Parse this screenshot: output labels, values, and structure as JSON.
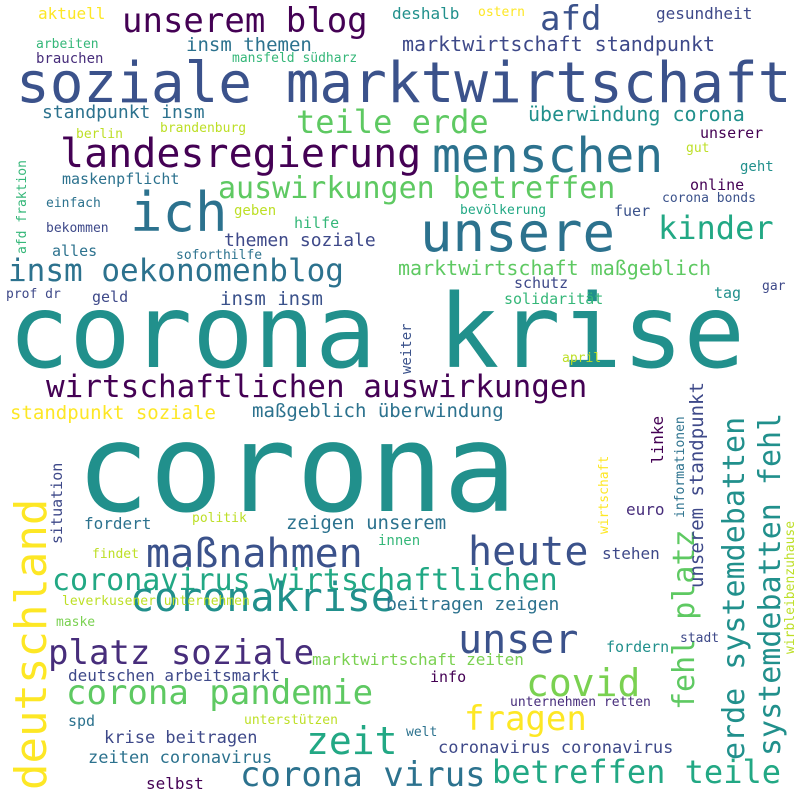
{
  "words": [
    {
      "id": "w-corona",
      "text": "corona",
      "color": "#21908c"
    },
    {
      "id": "w-corona-krise",
      "text": "corona krise",
      "color": "#21908c"
    },
    {
      "id": "w-soziale-marktwirtschaft",
      "text": "soziale marktwirtschaft",
      "color": "#3b528b"
    },
    {
      "id": "w-menschen",
      "text": "menschen",
      "color": "#2c728e"
    },
    {
      "id": "w-unsere",
      "text": "unsere",
      "color": "#2c728e"
    },
    {
      "id": "w-ich",
      "text": "ich",
      "color": "#2c728e"
    },
    {
      "id": "w-landesregierung",
      "text": "landesregierung",
      "color": "#440154"
    },
    {
      "id": "w-unserem-blog",
      "text": "unserem blog",
      "color": "#440154"
    },
    {
      "id": "w-afd",
      "text": "afd",
      "color": "#3b528b"
    },
    {
      "id": "w-teile-erde",
      "text": "teile erde",
      "color": "#5ec962"
    },
    {
      "id": "w-auswirkungen-betreffen",
      "text": "auswirkungen betreffen",
      "color": "#5ec962"
    },
    {
      "id": "w-kinder",
      "text": "kinder",
      "color": "#22a884"
    },
    {
      "id": "w-insm-oekonomenblog",
      "text": "insm oekonomenblog",
      "color": "#2c728e"
    },
    {
      "id": "w-wirtschaftlichen-auswirkungen",
      "text": "wirtschaftlichen auswirkungen",
      "color": "#440154"
    },
    {
      "id": "w-deutschland",
      "text": "deutschland",
      "color": "#fde725"
    },
    {
      "id": "w-massnahmen",
      "text": "maßnahmen",
      "color": "#3b528b"
    },
    {
      "id": "w-heute",
      "text": "heute",
      "color": "#3b528b"
    },
    {
      "id": "w-coronavirus-wirtschaftlichen",
      "text": "coronavirus wirtschaftlichen",
      "color": "#22a884"
    },
    {
      "id": "w-coronakrise",
      "text": "coronakrise",
      "color": "#21908c"
    },
    {
      "id": "w-unser",
      "text": "unser",
      "color": "#3b528b"
    },
    {
      "id": "w-platz-soziale",
      "text": "platz soziale",
      "color": "#472d7b"
    },
    {
      "id": "w-corona-pandemie",
      "text": "corona pandemie",
      "color": "#5ec962"
    },
    {
      "id": "w-covid",
      "text": "covid",
      "color": "#7ad151"
    },
    {
      "id": "w-fragen",
      "text": "fragen",
      "color": "#fde725"
    },
    {
      "id": "w-zeit",
      "text": "zeit",
      "color": "#22a884"
    },
    {
      "id": "w-corona-virus",
      "text": "corona virus",
      "color": "#2c728e"
    },
    {
      "id": "w-betreffen-teile",
      "text": "betreffen teile",
      "color": "#22a884"
    },
    {
      "id": "w-erde-systemdebatten",
      "text": "erde systemdebatten",
      "color": "#21908c"
    },
    {
      "id": "w-systemdebatten-fehl",
      "text": "systemdebatten fehl",
      "color": "#21908c"
    },
    {
      "id": "w-fehl-platz",
      "text": "fehl platz",
      "color": "#5ec962"
    },
    {
      "id": "w-marktwirtschaft-standpunkt",
      "text": "marktwirtschaft standpunkt",
      "color": "#3e4989"
    },
    {
      "id": "w-insm-themen",
      "text": "insm themen",
      "color": "#2c728e"
    },
    {
      "id": "w-deshalb",
      "text": "deshalb",
      "color": "#21908c"
    },
    {
      "id": "w-gesundheit",
      "text": "gesundheit",
      "color": "#3e4989"
    },
    {
      "id": "w-aktuell",
      "text": "aktuell",
      "color": "#fde725"
    },
    {
      "id": "w-ostern",
      "text": "ostern",
      "color": "#fde725"
    },
    {
      "id": "w-arbeiten",
      "text": "arbeiten",
      "color": "#35b779"
    },
    {
      "id": "w-brauchen",
      "text": "brauchen",
      "color": "#472d7b"
    },
    {
      "id": "w-mansfeld-suedharz",
      "text": "mansfeld südharz",
      "color": "#35b779"
    },
    {
      "id": "w-standpunkt-insm",
      "text": "standpunkt insm",
      "color": "#2c728e"
    },
    {
      "id": "w-ueberwindung-corona",
      "text": "überwindung corona",
      "color": "#21908c"
    },
    {
      "id": "w-unserer",
      "text": "unserer",
      "color": "#440154"
    },
    {
      "id": "w-berlin",
      "text": "berlin",
      "color": "#bddf26"
    },
    {
      "id": "w-brandenburg",
      "text": "brandenburg",
      "color": "#bddf26"
    },
    {
      "id": "w-gut",
      "text": "gut",
      "color": "#bddf26"
    },
    {
      "id": "w-geht",
      "text": "geht",
      "color": "#21908c"
    },
    {
      "id": "w-maskenpflicht",
      "text": "maskenpflicht",
      "color": "#2c728e"
    },
    {
      "id": "w-online",
      "text": "online",
      "color": "#440154"
    },
    {
      "id": "w-einfach",
      "text": "einfach",
      "color": "#2c728e"
    },
    {
      "id": "w-geben",
      "text": "geben",
      "color": "#bddf26"
    },
    {
      "id": "w-bevoelkerung",
      "text": "bevölkerung",
      "color": "#22a884"
    },
    {
      "id": "w-fuer",
      "text": "fuer",
      "color": "#3b528b"
    },
    {
      "id": "w-corona-bonds",
      "text": "corona bonds",
      "color": "#3b528b"
    },
    {
      "id": "w-afd-fraktion",
      "text": "afd fraktion",
      "color": "#35b779"
    },
    {
      "id": "w-bekommen",
      "text": "bekommen",
      "color": "#3e4989"
    },
    {
      "id": "w-hilfe",
      "text": "hilfe",
      "color": "#35b779"
    },
    {
      "id": "w-themen-soziale",
      "text": "themen soziale",
      "color": "#3e4989"
    },
    {
      "id": "w-alles",
      "text": "alles",
      "color": "#2c728e"
    },
    {
      "id": "w-soforthilfe",
      "text": "soforthilfe",
      "color": "#2c728e"
    },
    {
      "id": "w-marktwirtschaft-massgeblich",
      "text": "marktwirtschaft maßgeblich",
      "color": "#5ec962"
    },
    {
      "id": "w-prof-dr",
      "text": "prof dr",
      "color": "#3e4989"
    },
    {
      "id": "w-geld",
      "text": "geld",
      "color": "#3e4989"
    },
    {
      "id": "w-insm-insm",
      "text": "insm insm",
      "color": "#3b528b"
    },
    {
      "id": "w-schutz",
      "text": "schutz",
      "color": "#3e4989"
    },
    {
      "id": "w-solidaritaet",
      "text": "solidarität",
      "color": "#35b779"
    },
    {
      "id": "w-tag",
      "text": "tag",
      "color": "#21908c"
    },
    {
      "id": "w-gar",
      "text": "gar",
      "color": "#3e4989"
    },
    {
      "id": "w-weiter",
      "text": "weiter",
      "color": "#3b528b"
    },
    {
      "id": "w-april",
      "text": "april",
      "color": "#bddf26"
    },
    {
      "id": "w-standpunkt-soziale",
      "text": "standpunkt soziale",
      "color": "#fde725"
    },
    {
      "id": "w-massgeblich-ueberwindung",
      "text": "maßgeblich überwindung",
      "color": "#2c728e"
    },
    {
      "id": "w-wirtschaft",
      "text": "wirtschaft",
      "color": "#fde725"
    },
    {
      "id": "w-informationen",
      "text": "informationen",
      "color": "#2c728e"
    },
    {
      "id": "w-linke",
      "text": "linke",
      "color": "#440154"
    },
    {
      "id": "w-unserem-standpunkt",
      "text": "unserem standpunkt",
      "color": "#3e4989"
    },
    {
      "id": "w-wirbleibenzuhause",
      "text": "wirbleibenzuhause",
      "color": "#bddf26"
    },
    {
      "id": "w-situation",
      "text": "situation",
      "color": "#3e4989"
    },
    {
      "id": "w-fordert",
      "text": "fordert",
      "color": "#2c728e"
    },
    {
      "id": "w-politik",
      "text": "politik",
      "color": "#bddf26"
    },
    {
      "id": "w-zeigen-unserem",
      "text": "zeigen unserem",
      "color": "#2c728e"
    },
    {
      "id": "w-euro",
      "text": "euro",
      "color": "#472d7b"
    },
    {
      "id": "w-findet",
      "text": "findet",
      "color": "#bddf26"
    },
    {
      "id": "w-innen",
      "text": "innen",
      "color": "#35b779"
    },
    {
      "id": "w-stehen",
      "text": "stehen",
      "color": "#3e4989"
    },
    {
      "id": "w-leverkusener-unternehmen",
      "text": "leverkusener unternehmen",
      "color": "#bddf26"
    },
    {
      "id": "w-maske",
      "text": "maske",
      "color": "#7ad151"
    },
    {
      "id": "w-beitragen-zeigen",
      "text": "beitragen zeigen",
      "color": "#2c728e"
    },
    {
      "id": "w-fordern",
      "text": "fordern",
      "color": "#21908c"
    },
    {
      "id": "w-stadt",
      "text": "stadt",
      "color": "#3e4989"
    },
    {
      "id": "w-deutschen-arbeitsmarkt",
      "text": "deutschen arbeitsmarkt",
      "color": "#3e4989"
    },
    {
      "id": "w-marktwirtschaft-zeiten",
      "text": "marktwirtschaft zeiten",
      "color": "#7ad151"
    },
    {
      "id": "w-info",
      "text": "info",
      "color": "#440154"
    },
    {
      "id": "w-unternehmen-retten",
      "text": "unternehmen retten",
      "color": "#472d7b"
    },
    {
      "id": "w-spd",
      "text": "spd",
      "color": "#2c728e"
    },
    {
      "id": "w-unterstuetzen",
      "text": "unterstützen",
      "color": "#bddf26"
    },
    {
      "id": "w-welt",
      "text": "welt",
      "color": "#2c728e"
    },
    {
      "id": "w-krise-beitragen",
      "text": "krise beitragen",
      "color": "#3e4989"
    },
    {
      "id": "w-zeiten-coronavirus",
      "text": "zeiten coronavirus",
      "color": "#2c728e"
    },
    {
      "id": "w-coronavirus-coronavirus",
      "text": "coronavirus coronavirus",
      "color": "#3e4989"
    },
    {
      "id": "w-selbst",
      "text": "selbst",
      "color": "#440154"
    }
  ]
}
